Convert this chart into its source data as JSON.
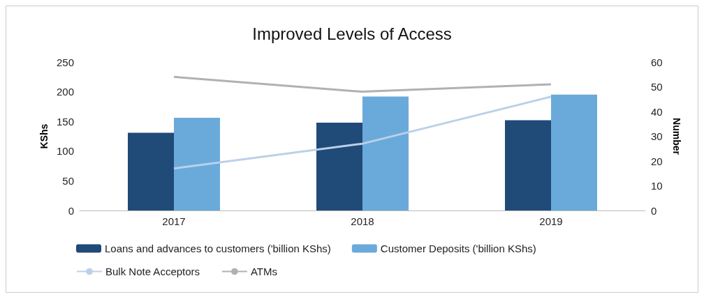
{
  "chart_data": {
    "type": "bar",
    "title": "Improved Levels of Access",
    "categories": [
      "2017",
      "2018",
      "2019"
    ],
    "ylabel": "KShs",
    "y2label": "Number",
    "ylim": [
      0,
      250
    ],
    "yticks": [
      0,
      50,
      100,
      150,
      200,
      250
    ],
    "y2lim": [
      0,
      60
    ],
    "y2ticks": [
      0,
      10,
      20,
      30,
      40,
      50,
      60
    ],
    "series": [
      {
        "name": "Loans and advances to customers ('billion KShs)",
        "color": "#204a78",
        "values": [
          131,
          148,
          152
        ]
      },
      {
        "name": "Customer Deposits ('billion KShs)",
        "color": "#6aaadb",
        "values": [
          156,
          192,
          195
        ]
      },
      {
        "name": "Bulk Note Acceptors",
        "type": "line",
        "axis": "y2",
        "color": "#bcd0e8",
        "values": [
          17,
          27,
          46
        ]
      },
      {
        "name": "ATMs",
        "type": "line",
        "axis": "y2",
        "color": "#b1b1b1",
        "values": [
          54,
          48,
          51
        ]
      }
    ],
    "grid": false,
    "legend": "bottom",
    "marker": "none"
  }
}
